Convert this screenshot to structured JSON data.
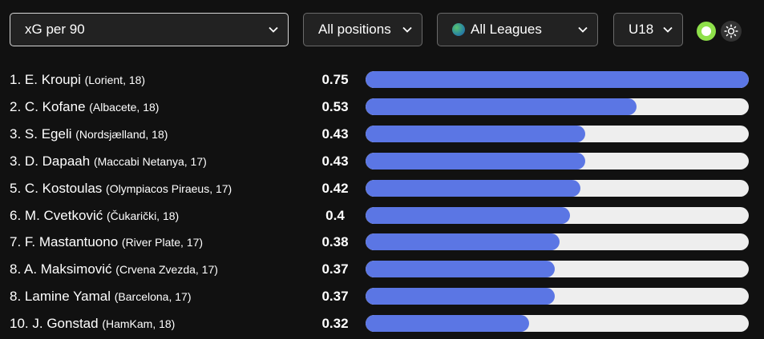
{
  "filters": {
    "metric": "xG per 90",
    "positions": "All positions",
    "leagues": "All Leagues",
    "age": "U18"
  },
  "colors": {
    "bar_fill": "#5b76e4",
    "bar_track": "#eeeeee",
    "toggle_on": "#8ee04a",
    "background": "#111111"
  },
  "max_value": 0.75,
  "rows": [
    {
      "rank": "1.",
      "name": "E. Kroupi",
      "meta": "(Lorient, 18)",
      "value": "0.75",
      "v": 0.75
    },
    {
      "rank": "2.",
      "name": "C. Kofane",
      "meta": "(Albacete, 18)",
      "value": "0.53",
      "v": 0.53
    },
    {
      "rank": "3.",
      "name": "S. Egeli",
      "meta": "(Nordsjælland, 18)",
      "value": "0.43",
      "v": 0.43
    },
    {
      "rank": "3.",
      "name": "D. Dapaah",
      "meta": "(Maccabi Netanya, 17)",
      "value": "0.43",
      "v": 0.43
    },
    {
      "rank": "5.",
      "name": "C. Kostoulas",
      "meta": "(Olympiacos Piraeus, 17)",
      "value": "0.42",
      "v": 0.42
    },
    {
      "rank": "6.",
      "name": "M. Cvetković",
      "meta": "(Čukarički, 18)",
      "value": "0.4",
      "v": 0.4
    },
    {
      "rank": "7.",
      "name": "F. Mastantuono",
      "meta": "(River Plate, 17)",
      "value": "0.38",
      "v": 0.38
    },
    {
      "rank": "8.",
      "name": "A. Maksimović",
      "meta": "(Crvena Zvezda, 17)",
      "value": "0.37",
      "v": 0.37
    },
    {
      "rank": "8.",
      "name": "Lamine Yamal",
      "meta": "(Barcelona, 17)",
      "value": "0.37",
      "v": 0.37
    },
    {
      "rank": "10.",
      "name": "J. Gonstad",
      "meta": "(HamKam, 18)",
      "value": "0.32",
      "v": 0.32
    }
  ]
}
